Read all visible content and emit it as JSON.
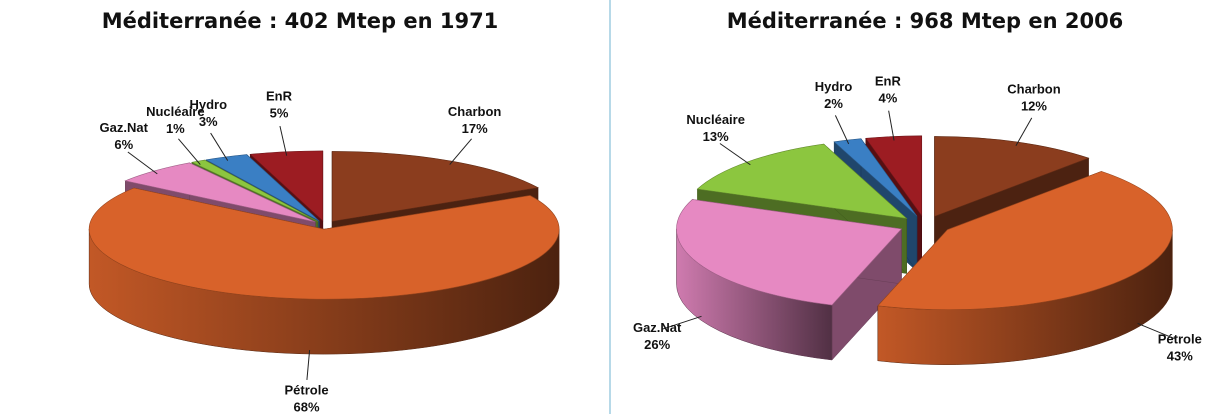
{
  "chart_data": [
    {
      "type": "pie",
      "title": "Méditerranée : 402 Mtep en 1971",
      "categories": [
        "Charbon",
        "Pétrole",
        "Gaz.Nat",
        "Nucléaire",
        "Hydro",
        "EnR"
      ],
      "values": [
        17,
        68,
        6,
        1,
        3,
        5
      ],
      "value_labels": [
        "17%",
        "68%",
        "6%",
        "1%",
        "3%",
        "5%"
      ],
      "colors": [
        "#8b3d1e",
        "#d8622a",
        "#e689c2",
        "#8cc63f",
        "#3a7fc4",
        "#9c1c22"
      ]
    },
    {
      "type": "pie",
      "title": "Méditerranée : 968 Mtep en 2006",
      "categories": [
        "Charbon",
        "Pétrole",
        "Gaz.Nat",
        "Nucléaire",
        "Hydro",
        "EnR"
      ],
      "values": [
        12,
        43,
        26,
        13,
        2,
        4
      ],
      "value_labels": [
        "12%",
        "43%",
        "26%",
        "13%",
        "2%",
        "4%"
      ],
      "colors": [
        "#8b3d1e",
        "#d8622a",
        "#e689c2",
        "#8cc63f",
        "#3a7fc4",
        "#9c1c22"
      ]
    }
  ]
}
